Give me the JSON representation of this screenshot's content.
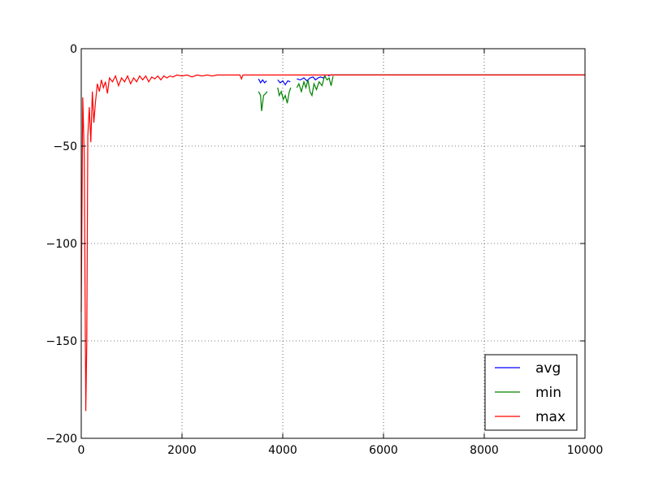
{
  "chart_data": {
    "type": "line",
    "title": "",
    "xlabel": "",
    "ylabel": "",
    "xlim": [
      0,
      10000
    ],
    "ylim": [
      -200,
      0
    ],
    "xticks": [
      0,
      2000,
      4000,
      6000,
      8000,
      10000
    ],
    "yticks": [
      0,
      -50,
      -100,
      -150,
      -200
    ],
    "xtick_labels": [
      "0",
      "2000",
      "4000",
      "6000",
      "8000",
      "10000"
    ],
    "ytick_labels": [
      "0",
      "−50",
      "−100",
      "−150",
      "−200"
    ],
    "grid": true,
    "legend_position": "lower-right",
    "series": [
      {
        "name": "avg",
        "color": "#0000ff",
        "segments": [
          [
            [
              3520,
              -15.5
            ],
            [
              3560,
              -17.5
            ],
            [
              3600,
              -16
            ],
            [
              3640,
              -17.5
            ],
            [
              3680,
              -16.5
            ]
          ],
          [
            [
              3900,
              -16
            ],
            [
              3950,
              -17.5
            ],
            [
              4000,
              -16.5
            ],
            [
              4050,
              -18.5
            ],
            [
              4100,
              -16.5
            ],
            [
              4150,
              -17
            ]
          ],
          [
            [
              4280,
              -15.5
            ],
            [
              4350,
              -16
            ],
            [
              4420,
              -15
            ],
            [
              4480,
              -16.5
            ],
            [
              4540,
              -15
            ],
            [
              4600,
              -14.5
            ],
            [
              4650,
              -16
            ],
            [
              4700,
              -15
            ],
            [
              4750,
              -14.5
            ],
            [
              4800,
              -15
            ],
            [
              4850,
              -14
            ]
          ],
          [
            [
              4900,
              -14
            ],
            [
              4950,
              -13.5
            ],
            [
              5000,
              -13.5
            ],
            [
              10000,
              -13.5
            ]
          ]
        ]
      },
      {
        "name": "min",
        "color": "#008000",
        "segments": [
          [
            [
              3520,
              -22
            ],
            [
              3560,
              -24
            ],
            [
              3580,
              -32
            ],
            [
              3620,
              -24
            ],
            [
              3660,
              -23
            ],
            [
              3690,
              -22
            ]
          ],
          [
            [
              3900,
              -20
            ],
            [
              3930,
              -24
            ],
            [
              3970,
              -22
            ],
            [
              4010,
              -26
            ],
            [
              4050,
              -24
            ],
            [
              4090,
              -28
            ],
            [
              4130,
              -22
            ],
            [
              4160,
              -20
            ]
          ],
          [
            [
              4280,
              -20
            ],
            [
              4320,
              -18
            ],
            [
              4370,
              -22
            ],
            [
              4420,
              -17
            ],
            [
              4460,
              -20
            ],
            [
              4500,
              -16
            ],
            [
              4540,
              -22
            ],
            [
              4580,
              -24
            ],
            [
              4620,
              -18
            ],
            [
              4670,
              -21
            ],
            [
              4720,
              -17
            ],
            [
              4780,
              -19
            ],
            [
              4830,
              -14
            ],
            [
              4880,
              -16
            ],
            [
              4920,
              -15
            ],
            [
              4960,
              -19
            ],
            [
              5000,
              -14
            ]
          ],
          [
            [
              5000,
              -13.5
            ],
            [
              10000,
              -13.5
            ]
          ]
        ]
      },
      {
        "name": "max",
        "color": "#ff0000",
        "segments": [
          [
            [
              0,
              -135
            ],
            [
              30,
              -25
            ],
            [
              60,
              -55
            ],
            [
              90,
              -186
            ],
            [
              110,
              -150
            ],
            [
              130,
              -45
            ],
            [
              160,
              -30
            ],
            [
              190,
              -48
            ],
            [
              220,
              -22
            ],
            [
              250,
              -38
            ],
            [
              280,
              -28
            ],
            [
              320,
              -18
            ],
            [
              360,
              -22
            ],
            [
              400,
              -16
            ],
            [
              440,
              -20
            ],
            [
              480,
              -17
            ],
            [
              520,
              -23
            ],
            [
              560,
              -15
            ],
            [
              620,
              -17
            ],
            [
              680,
              -14
            ],
            [
              740,
              -19
            ],
            [
              800,
              -15
            ],
            [
              860,
              -17
            ],
            [
              920,
              -14
            ],
            [
              980,
              -18
            ],
            [
              1040,
              -15
            ],
            [
              1100,
              -17
            ],
            [
              1160,
              -14
            ],
            [
              1220,
              -16
            ],
            [
              1280,
              -14
            ],
            [
              1340,
              -17
            ],
            [
              1400,
              -14.5
            ],
            [
              1460,
              -15.5
            ],
            [
              1520,
              -14
            ],
            [
              1580,
              -16
            ],
            [
              1640,
              -14
            ],
            [
              1700,
              -15
            ],
            [
              1760,
              -14
            ],
            [
              1820,
              -14.5
            ],
            [
              1900,
              -13.5
            ],
            [
              2000,
              -14
            ],
            [
              2100,
              -13.5
            ],
            [
              2200,
              -14.5
            ],
            [
              2300,
              -13.5
            ],
            [
              2400,
              -14
            ],
            [
              2500,
              -13.5
            ],
            [
              2600,
              -14
            ],
            [
              2700,
              -13.5
            ],
            [
              2800,
              -13.5
            ],
            [
              3000,
              -13.5
            ],
            [
              3150,
              -13.5
            ],
            [
              3180,
              -15.5
            ],
            [
              3210,
              -13.5
            ],
            [
              10000,
              -13.5
            ]
          ]
        ]
      }
    ]
  }
}
